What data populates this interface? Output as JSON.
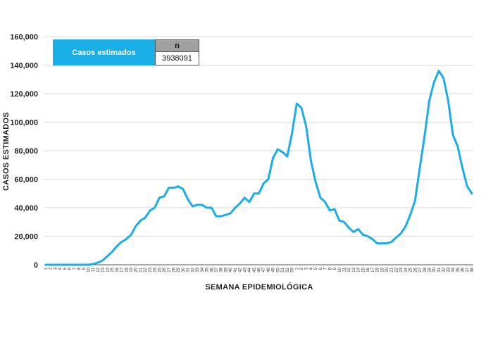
{
  "chart_data": {
    "type": "line",
    "xlabel": "SEMANA EPIDEMIOLÓGICA",
    "ylabel": "CASOS ESTIMADOS",
    "ylim": [
      0,
      160000
    ],
    "yticks": [
      "0",
      "20,000",
      "40,000",
      "60,000",
      "80,000",
      "100,000",
      "120,000",
      "140,000",
      "160,000"
    ],
    "grid": "horizontal",
    "line_color": "#1aaee6",
    "x": [
      1,
      2,
      3,
      4,
      5,
      6,
      7,
      8,
      9,
      10,
      11,
      12,
      13,
      14,
      15,
      16,
      17,
      18,
      19,
      20,
      21,
      22,
      23,
      24,
      25,
      26,
      27,
      28,
      29,
      30,
      31,
      32,
      33,
      34,
      35,
      36,
      37,
      38,
      39,
      40,
      41,
      42,
      43,
      44,
      45,
      46,
      47,
      48,
      49,
      50,
      51,
      52,
      53,
      1,
      2,
      3,
      4,
      5,
      6,
      7,
      8,
      9,
      10,
      11,
      12,
      13,
      14,
      15,
      16,
      17,
      18,
      19,
      20,
      21,
      22,
      23,
      24,
      25,
      26,
      27,
      28,
      29,
      30,
      31,
      32,
      33,
      34,
      35,
      36,
      37,
      38
    ],
    "values": [
      0,
      0,
      0,
      0,
      0,
      0,
      0,
      0,
      0,
      0,
      500,
      1500,
      3000,
      6000,
      9000,
      13000,
      16000,
      18000,
      21000,
      27000,
      31000,
      33000,
      38000,
      40000,
      47000,
      48000,
      54000,
      54000,
      55000,
      53000,
      46000,
      41000,
      42000,
      42000,
      40000,
      40000,
      34000,
      34000,
      35000,
      36000,
      40000,
      43000,
      47000,
      44000,
      50000,
      50000,
      57000,
      60000,
      75000,
      81000,
      79000,
      76000,
      92000,
      113000,
      110000,
      97000,
      73000,
      58000,
      47000,
      44000,
      38000,
      39000,
      31000,
      30000,
      26000,
      23000,
      25000,
      21000,
      20000,
      18000,
      15000,
      15000,
      15000,
      16000,
      19000,
      22000,
      27000,
      35000,
      45000,
      68000,
      90000,
      115000,
      128000,
      136000,
      131000,
      115000,
      91000,
      83000,
      68000,
      55000,
      50000
    ]
  },
  "legend": {
    "label": "Casos estimados",
    "n_header": "n",
    "n_value": "3938091"
  }
}
